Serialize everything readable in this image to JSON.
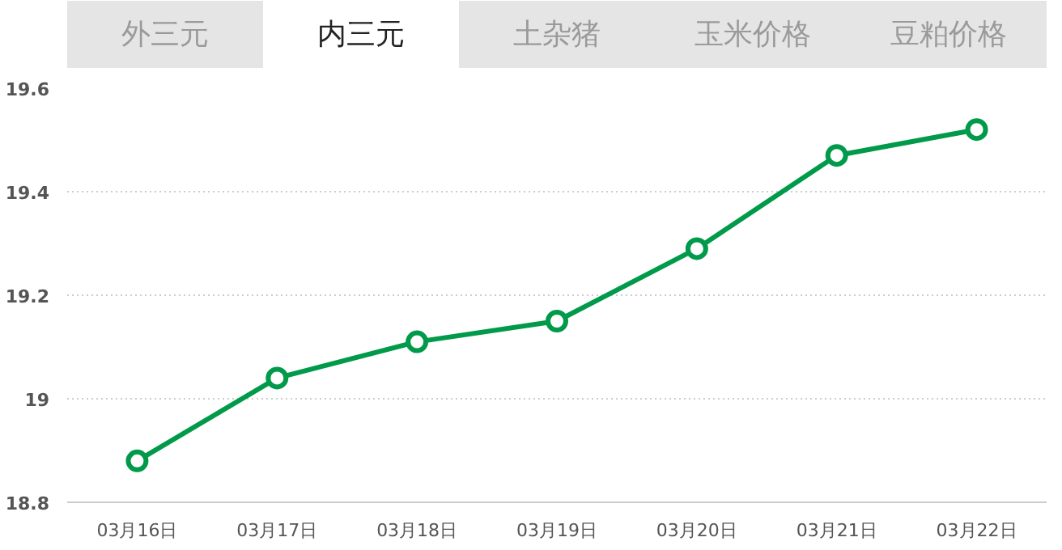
{
  "chart_data": {
    "type": "line",
    "annotations": [
      "外三元",
      "内三元",
      "土杂猪",
      "玉米价格",
      "豆粕价格"
    ],
    "categories": [
      "03月16日",
      "03月17日",
      "03月18日",
      "03月19日",
      "03月20日",
      "03月21日",
      "03月22日"
    ],
    "series": [
      {
        "color": "#009a4a",
        "values": [
          18.88,
          19.04,
          19.11,
          19.15,
          19.29,
          19.47,
          19.52
        ]
      }
    ],
    "ylim": [
      18.8,
      19.6
    ],
    "yticks": [
      18.8,
      19,
      19.2,
      19.4,
      19.6
    ],
    "grid": "y",
    "marker": "circle",
    "line_style": "solid"
  }
}
